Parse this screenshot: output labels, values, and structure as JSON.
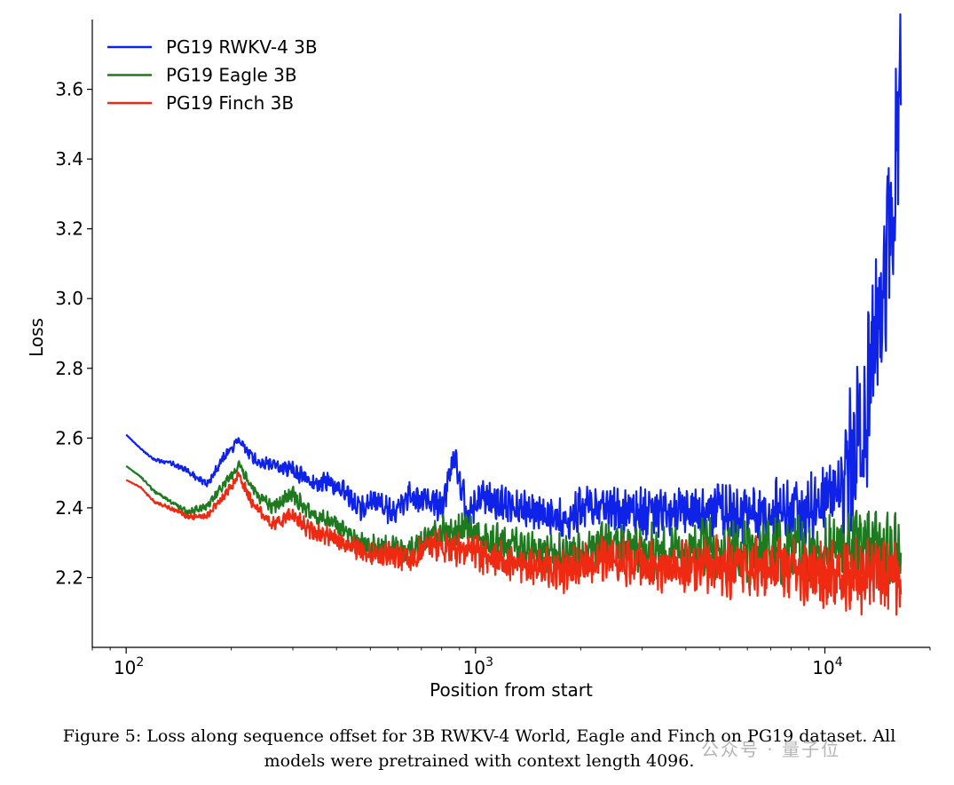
{
  "chart_data": {
    "type": "line",
    "xlabel": "Position from start",
    "ylabel": "Loss",
    "xscale": "log",
    "xlim": [
      80,
      20000
    ],
    "ylim": [
      2.0,
      3.8
    ],
    "xticks": [
      100,
      1000,
      10000
    ],
    "xtick_labels": [
      "10",
      "10",
      "10"
    ],
    "xtick_exponents": [
      "2",
      "3",
      "4"
    ],
    "yticks": [
      2.2,
      2.4,
      2.6,
      2.8,
      3.0,
      3.2,
      3.4,
      3.6
    ],
    "ytick_labels": [
      "2.2",
      "2.4",
      "2.6",
      "2.8",
      "3.0",
      "3.2",
      "3.4",
      "3.6"
    ],
    "grid": false,
    "legend_position": "top-left",
    "series": [
      {
        "name": "PG19 RWKV-4 3B",
        "color": "#0f23e8",
        "points": [
          [
            100,
            2.61
          ],
          [
            110,
            2.57
          ],
          [
            120,
            2.54
          ],
          [
            135,
            2.53
          ],
          [
            150,
            2.51
          ],
          [
            170,
            2.47
          ],
          [
            190,
            2.55
          ],
          [
            210,
            2.6
          ],
          [
            230,
            2.55
          ],
          [
            260,
            2.53
          ],
          [
            300,
            2.52
          ],
          [
            340,
            2.48
          ],
          [
            380,
            2.49
          ],
          [
            420,
            2.46
          ],
          [
            470,
            2.41
          ],
          [
            520,
            2.44
          ],
          [
            580,
            2.4
          ],
          [
            650,
            2.45
          ],
          [
            720,
            2.44
          ],
          [
            800,
            2.42
          ],
          [
            870,
            2.57
          ],
          [
            950,
            2.4
          ],
          [
            1050,
            2.45
          ],
          [
            1200,
            2.43
          ],
          [
            1400,
            2.42
          ],
          [
            1600,
            2.4
          ],
          [
            1850,
            2.39
          ],
          [
            2100,
            2.44
          ],
          [
            2500,
            2.42
          ],
          [
            3000,
            2.41
          ],
          [
            3500,
            2.42
          ],
          [
            4000,
            2.42
          ],
          [
            4700,
            2.43
          ],
          [
            5500,
            2.41
          ],
          [
            6500,
            2.42
          ],
          [
            7500,
            2.43
          ],
          [
            8500,
            2.43
          ],
          [
            9500,
            2.45
          ],
          [
            10500,
            2.48
          ],
          [
            11500,
            2.56
          ],
          [
            12500,
            2.68
          ],
          [
            13500,
            2.87
          ],
          [
            14500,
            3.08
          ],
          [
            15500,
            3.33
          ],
          [
            16500,
            3.68
          ]
        ]
      },
      {
        "name": "PG19 Eagle 3B",
        "color": "#1e7a1e",
        "points": [
          [
            100,
            2.52
          ],
          [
            110,
            2.49
          ],
          [
            120,
            2.45
          ],
          [
            135,
            2.42
          ],
          [
            150,
            2.39
          ],
          [
            170,
            2.41
          ],
          [
            190,
            2.47
          ],
          [
            210,
            2.53
          ],
          [
            230,
            2.46
          ],
          [
            260,
            2.41
          ],
          [
            300,
            2.45
          ],
          [
            340,
            2.39
          ],
          [
            380,
            2.37
          ],
          [
            420,
            2.35
          ],
          [
            470,
            2.31
          ],
          [
            520,
            2.3
          ],
          [
            580,
            2.3
          ],
          [
            650,
            2.29
          ],
          [
            720,
            2.33
          ],
          [
            800,
            2.35
          ],
          [
            870,
            2.34
          ],
          [
            950,
            2.37
          ],
          [
            1050,
            2.32
          ],
          [
            1200,
            2.32
          ],
          [
            1400,
            2.31
          ],
          [
            1600,
            2.3
          ],
          [
            1850,
            2.29
          ],
          [
            2100,
            2.31
          ],
          [
            2500,
            2.33
          ],
          [
            3000,
            2.31
          ],
          [
            3500,
            2.3
          ],
          [
            4000,
            2.31
          ],
          [
            4700,
            2.32
          ],
          [
            5500,
            2.31
          ],
          [
            6500,
            2.31
          ],
          [
            7500,
            2.32
          ],
          [
            8500,
            2.32
          ],
          [
            9500,
            2.31
          ],
          [
            10500,
            2.32
          ],
          [
            11500,
            2.33
          ],
          [
            12500,
            2.34
          ],
          [
            13500,
            2.33
          ],
          [
            14500,
            2.34
          ],
          [
            15500,
            2.33
          ],
          [
            16500,
            2.33
          ]
        ]
      },
      {
        "name": "PG19 Finch 3B",
        "color": "#ee2a12",
        "points": [
          [
            100,
            2.48
          ],
          [
            110,
            2.46
          ],
          [
            120,
            2.42
          ],
          [
            135,
            2.4
          ],
          [
            150,
            2.38
          ],
          [
            170,
            2.38
          ],
          [
            190,
            2.44
          ],
          [
            210,
            2.5
          ],
          [
            230,
            2.42
          ],
          [
            260,
            2.36
          ],
          [
            300,
            2.39
          ],
          [
            340,
            2.34
          ],
          [
            380,
            2.33
          ],
          [
            420,
            2.31
          ],
          [
            470,
            2.29
          ],
          [
            520,
            2.28
          ],
          [
            580,
            2.28
          ],
          [
            650,
            2.27
          ],
          [
            720,
            2.3
          ],
          [
            800,
            2.31
          ],
          [
            870,
            2.3
          ],
          [
            950,
            2.31
          ],
          [
            1050,
            2.28
          ],
          [
            1200,
            2.27
          ],
          [
            1400,
            2.26
          ],
          [
            1600,
            2.25
          ],
          [
            1850,
            2.24
          ],
          [
            2100,
            2.27
          ],
          [
            2500,
            2.28
          ],
          [
            3000,
            2.27
          ],
          [
            3500,
            2.25
          ],
          [
            4000,
            2.26
          ],
          [
            4700,
            2.27
          ],
          [
            5500,
            2.26
          ],
          [
            6500,
            2.26
          ],
          [
            7500,
            2.26
          ],
          [
            8500,
            2.26
          ],
          [
            9500,
            2.25
          ],
          [
            10500,
            2.25
          ],
          [
            11500,
            2.25
          ],
          [
            12500,
            2.25
          ],
          [
            13500,
            2.25
          ],
          [
            14500,
            2.25
          ],
          [
            15500,
            2.25
          ],
          [
            16500,
            2.26
          ]
        ]
      }
    ]
  },
  "caption": {
    "line1": "Figure 5: Loss along sequence offset for 3B RWKV-4 World, Eagle and Finch on PG19 dataset. All",
    "line2": "models were pretrained with context length 4096."
  },
  "watermark": "公众号 · 量子位"
}
